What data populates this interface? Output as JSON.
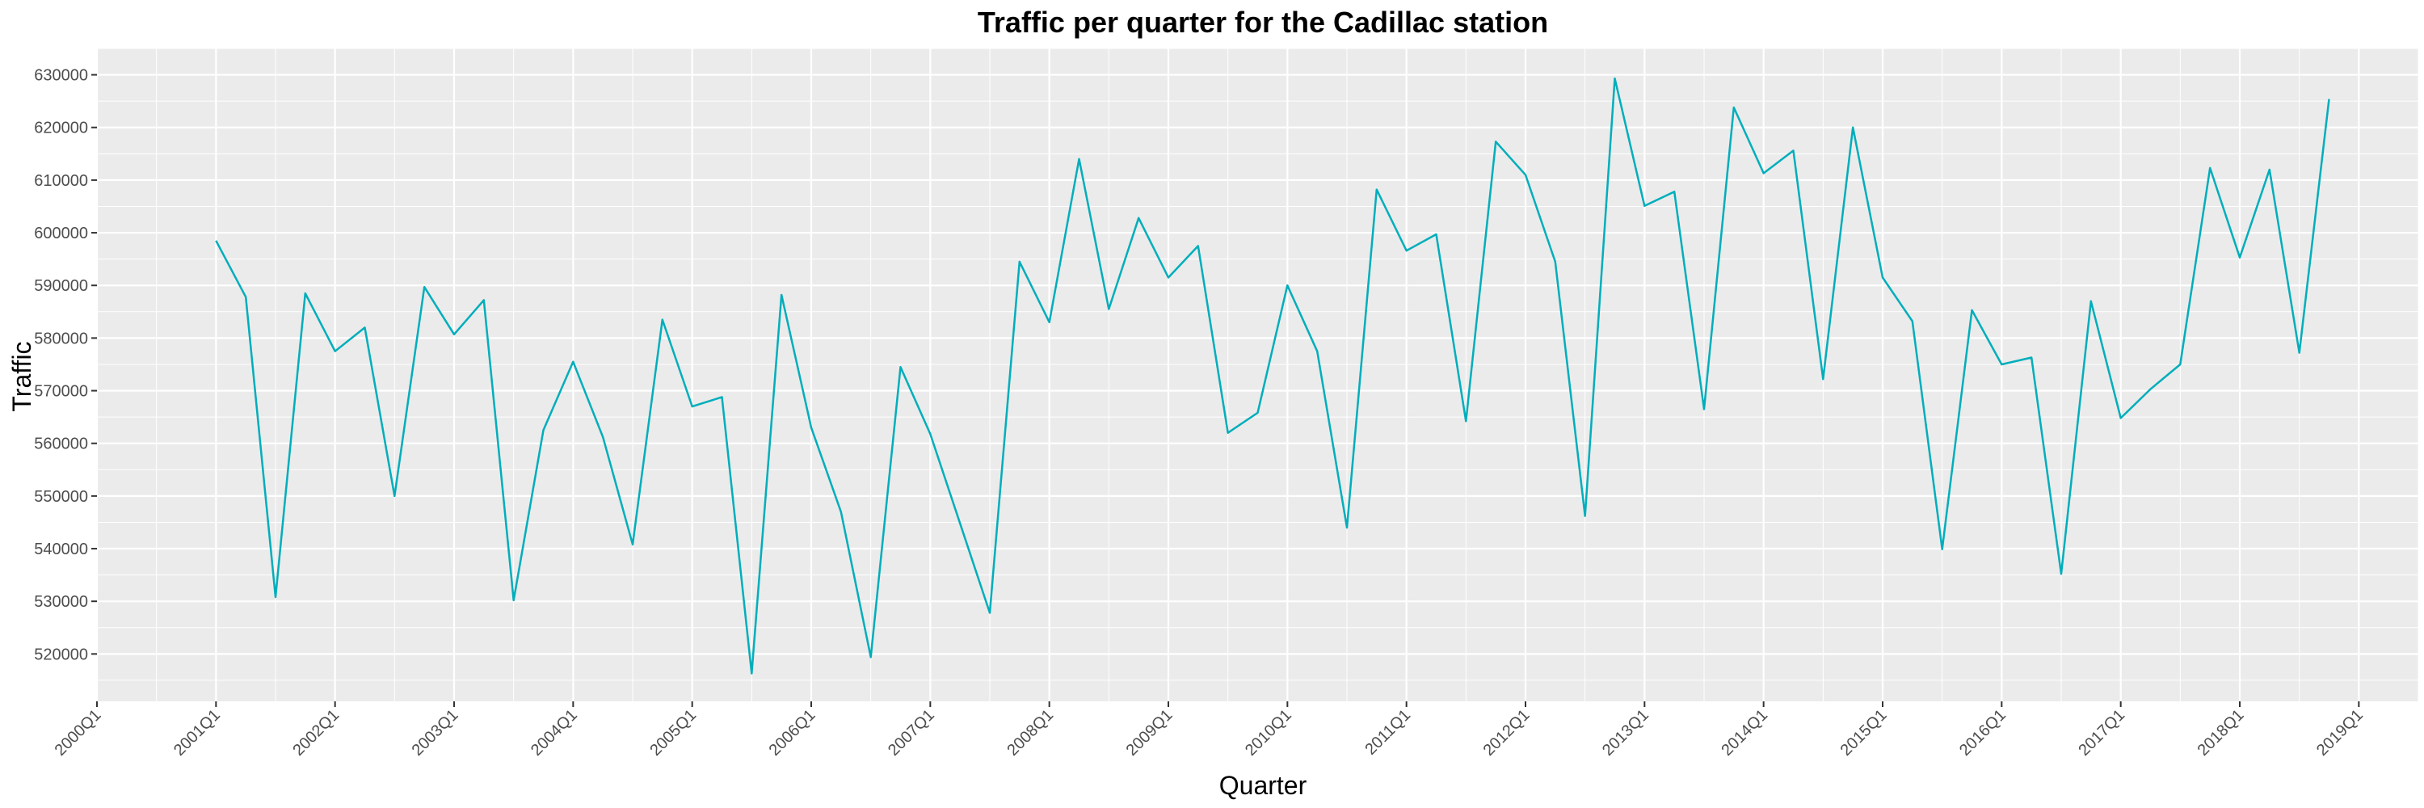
{
  "chart_data": {
    "type": "line",
    "title": "Traffic per quarter for the Cadillac station",
    "xlabel": "Quarter",
    "ylabel": "Traffic",
    "x_ticks": [
      "2000Q1",
      "2001Q1",
      "2002Q1",
      "2003Q1",
      "2004Q1",
      "2005Q1",
      "2006Q1",
      "2007Q1",
      "2008Q1",
      "2009Q1",
      "2010Q1",
      "2011Q1",
      "2012Q1",
      "2013Q1",
      "2014Q1",
      "2015Q1",
      "2016Q1",
      "2017Q1",
      "2018Q1",
      "2019Q1"
    ],
    "y_ticks": [
      520000,
      530000,
      540000,
      550000,
      560000,
      570000,
      580000,
      590000,
      600000,
      610000,
      620000,
      630000
    ],
    "xlim": [
      2000.0,
      2019.5
    ],
    "ylim": [
      511000,
      635000
    ],
    "grid": true,
    "background": "#ebebeb",
    "line_color": "#00aebb",
    "series": [
      {
        "x_start_quarter": "2001Q1",
        "values": [
          598500,
          587800,
          530800,
          588500,
          577500,
          582000,
          550000,
          589700,
          580700,
          587200,
          530200,
          562500,
          575500,
          561200,
          540800,
          583500,
          567000,
          568800,
          516300,
          588200,
          563000,
          547000,
          519400,
          574500,
          561800,
          544800,
          527800,
          594500,
          583000,
          614000,
          585500,
          602800,
          591500,
          597500,
          562000,
          565800,
          590000,
          577500,
          544000,
          608200,
          596600,
          599700,
          564200,
          617300,
          611000,
          594500,
          546200,
          629300,
          605100,
          607800,
          566500,
          623800,
          611300,
          615600,
          572200,
          620000,
          591500,
          583200,
          539900,
          585300,
          575000,
          576300,
          535200,
          587000,
          564800,
          570300,
          575000,
          612300,
          595300,
          612000,
          577200,
          625400
        ]
      }
    ]
  }
}
